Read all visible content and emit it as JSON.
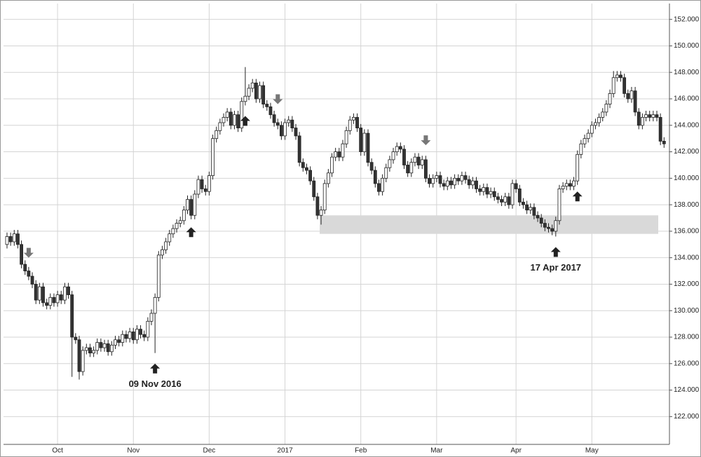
{
  "chart_data": {
    "type": "candlestick",
    "up_color": "#ffffff",
    "down_color": "#333333",
    "edge_color": "#222222",
    "grid": true,
    "ylim": [
      119.9,
      153.2
    ],
    "yticks": [
      {
        "value": 122,
        "label": "122.000"
      },
      {
        "value": 124,
        "label": "124.000"
      },
      {
        "value": 126,
        "label": "126.000"
      },
      {
        "value": 128,
        "label": "128.000"
      },
      {
        "value": 130,
        "label": "130.000"
      },
      {
        "value": 132,
        "label": "132.000"
      },
      {
        "value": 134,
        "label": "134.000"
      },
      {
        "value": 136,
        "label": "136.000"
      },
      {
        "value": 138,
        "label": "138.000"
      },
      {
        "value": 140,
        "label": "140.000"
      },
      {
        "value": 142,
        "label": "142.000"
      },
      {
        "value": 144,
        "label": "144.000"
      },
      {
        "value": 146,
        "label": "146.000"
      },
      {
        "value": 148,
        "label": "148.000"
      },
      {
        "value": 150,
        "label": "150.000"
      },
      {
        "value": 152,
        "label": "152.000"
      }
    ],
    "categories": [
      null,
      null,
      null,
      null,
      null,
      null,
      null,
      null,
      null,
      null,
      null,
      null,
      null,
      null,
      "Oct",
      null,
      null,
      null,
      null,
      null,
      null,
      null,
      null,
      null,
      null,
      null,
      null,
      null,
      null,
      null,
      null,
      null,
      null,
      null,
      null,
      "Nov",
      null,
      null,
      null,
      null,
      null,
      null,
      null,
      null,
      null,
      null,
      null,
      null,
      null,
      null,
      null,
      null,
      null,
      null,
      null,
      null,
      "Dec",
      null,
      null,
      null,
      null,
      null,
      null,
      null,
      null,
      null,
      null,
      null,
      null,
      null,
      null,
      null,
      null,
      null,
      null,
      null,
      null,
      "2017",
      null,
      null,
      null,
      null,
      null,
      null,
      null,
      null,
      null,
      null,
      null,
      null,
      null,
      null,
      null,
      null,
      null,
      null,
      null,
      null,
      "Feb",
      null,
      null,
      null,
      null,
      null,
      null,
      null,
      null,
      null,
      null,
      null,
      null,
      null,
      null,
      null,
      null,
      null,
      null,
      null,
      null,
      "Mar",
      null,
      null,
      null,
      null,
      null,
      null,
      null,
      null,
      null,
      null,
      null,
      null,
      null,
      null,
      null,
      null,
      null,
      null,
      null,
      null,
      null,
      "Apr",
      null,
      null,
      null,
      null,
      null,
      null,
      null,
      null,
      null,
      null,
      null,
      null,
      null,
      null,
      null,
      null,
      null,
      null,
      null,
      null,
      "May",
      null,
      null,
      null,
      null,
      null,
      null,
      null,
      null,
      null,
      null,
      null,
      null,
      null,
      null,
      null,
      null,
      null,
      null,
      null,
      null
    ],
    "open": [
      135.0,
      135.6,
      135.2,
      135.8,
      135.0,
      133.5,
      133.0,
      132.6,
      132.0,
      130.8,
      131.8,
      130.6,
      130.4,
      131.0,
      130.6,
      131.2,
      130.8,
      131.8,
      131.2,
      128.0,
      127.8,
      125.4,
      127.0,
      127.2,
      126.8,
      127.0,
      127.6,
      127.2,
      127.5,
      126.9,
      127.4,
      127.8,
      127.6,
      128.2,
      127.9,
      128.4,
      127.8,
      128.6,
      128.2,
      128.0,
      129.2,
      129.8,
      131.0,
      134.2,
      134.6,
      135.2,
      135.8,
      136.2,
      136.6,
      136.8,
      137.6,
      138.4,
      137.2,
      138.8,
      139.9,
      139.2,
      139.0,
      140.2,
      143.0,
      143.6,
      144.2,
      144.6,
      145.0,
      144.0,
      144.8,
      143.8,
      145.8,
      146.2,
      146.8,
      147.2,
      146.0,
      147.0,
      145.6,
      145.4,
      144.8,
      144.2,
      144.0,
      143.2,
      144.2,
      144.4,
      143.8,
      143.2,
      141.2,
      140.8,
      140.6,
      139.8,
      138.6,
      137.2,
      137.6,
      139.6,
      140.4,
      141.6,
      142.0,
      141.6,
      142.6,
      143.6,
      144.4,
      144.6,
      143.8,
      142.0,
      143.4,
      141.2,
      140.6,
      139.6,
      139.0,
      140.0,
      140.8,
      141.4,
      142.0,
      142.4,
      142.2,
      141.0,
      140.4,
      141.2,
      141.6,
      141.0,
      141.4,
      140.0,
      139.6,
      140.0,
      140.2,
      139.6,
      139.4,
      139.8,
      139.5,
      140.0,
      139.8,
      140.2,
      139.9,
      139.5,
      139.8,
      139.2,
      139.0,
      139.3,
      138.8,
      139.0,
      138.6,
      138.4,
      138.2,
      138.6,
      138.0,
      139.6,
      139.2,
      138.2,
      138.0,
      137.6,
      137.8,
      137.2,
      137.0,
      136.6,
      136.3,
      136.2,
      136.0,
      136.8,
      139.2,
      139.4,
      139.6,
      139.4,
      139.8,
      141.8,
      142.6,
      143.0,
      143.4,
      144.0,
      144.2,
      144.6,
      145.0,
      145.6,
      146.4,
      147.6,
      147.8,
      147.6,
      146.4,
      146.0,
      146.6,
      145.0,
      144.0,
      144.6,
      144.8,
      144.6,
      144.8,
      144.6,
      142.8
    ],
    "high": [
      135.9,
      135.9,
      136.1,
      136.1,
      135.3,
      133.8,
      133.3,
      132.9,
      132.3,
      132.1,
      132.1,
      130.9,
      131.3,
      131.3,
      131.5,
      131.5,
      132.1,
      132.1,
      131.5,
      128.3,
      128.1,
      127.3,
      127.5,
      127.5,
      127.3,
      127.9,
      127.9,
      127.8,
      127.8,
      127.7,
      128.1,
      128.1,
      128.5,
      128.5,
      128.7,
      128.7,
      128.9,
      128.9,
      128.5,
      129.5,
      130.1,
      131.3,
      134.5,
      134.9,
      135.5,
      136.1,
      136.5,
      136.9,
      137.1,
      137.9,
      138.7,
      138.7,
      139.1,
      140.2,
      140.2,
      139.5,
      140.5,
      143.3,
      143.9,
      144.5,
      144.9,
      145.3,
      145.3,
      145.1,
      145.1,
      146.1,
      148.4,
      147.1,
      147.5,
      147.5,
      147.3,
      147.3,
      145.9,
      145.7,
      145.1,
      144.5,
      144.3,
      144.5,
      144.7,
      144.7,
      144.1,
      143.5,
      141.5,
      141.1,
      140.9,
      140.1,
      138.9,
      137.9,
      139.9,
      140.7,
      141.9,
      142.3,
      142.3,
      142.9,
      143.9,
      144.7,
      144.9,
      144.9,
      144.1,
      143.7,
      143.7,
      141.5,
      140.9,
      139.9,
      140.3,
      141.1,
      141.7,
      142.3,
      142.7,
      142.7,
      142.5,
      141.3,
      141.5,
      141.9,
      141.9,
      141.7,
      141.7,
      140.3,
      140.3,
      140.5,
      140.5,
      139.9,
      140.1,
      140.1,
      140.3,
      140.3,
      140.5,
      140.5,
      140.2,
      140.1,
      140.1,
      139.5,
      139.6,
      139.6,
      139.3,
      139.3,
      138.9,
      138.7,
      138.9,
      138.9,
      139.9,
      139.9,
      139.5,
      138.5,
      138.3,
      138.1,
      138.1,
      137.5,
      137.3,
      136.9,
      136.6,
      136.5,
      137.1,
      139.5,
      139.7,
      139.9,
      139.9,
      140.1,
      142.1,
      142.9,
      143.3,
      143.7,
      144.3,
      144.5,
      144.9,
      145.3,
      145.9,
      146.7,
      148.1,
      148.1,
      148.1,
      147.9,
      146.7,
      146.9,
      146.9,
      145.3,
      144.9,
      145.1,
      145.1,
      145.1,
      145.1,
      144.9,
      143.1
    ],
    "low": [
      134.7,
      134.9,
      134.9,
      134.7,
      133.2,
      132.7,
      132.3,
      131.7,
      130.5,
      130.5,
      130.3,
      130.1,
      130.1,
      130.3,
      130.3,
      130.5,
      130.5,
      130.9,
      125.0,
      127.5,
      124.8,
      125.1,
      126.7,
      126.5,
      126.5,
      126.7,
      126.9,
      126.9,
      126.6,
      126.6,
      127.1,
      127.3,
      127.3,
      127.6,
      127.6,
      127.5,
      127.5,
      127.9,
      127.7,
      127.7,
      128.9,
      126.8,
      130.7,
      133.9,
      134.3,
      134.9,
      135.5,
      135.9,
      136.3,
      136.5,
      137.3,
      136.9,
      136.9,
      138.5,
      138.9,
      138.7,
      138.7,
      139.9,
      142.7,
      143.3,
      143.9,
      144.3,
      143.7,
      143.7,
      143.5,
      143.5,
      145.5,
      145.9,
      146.5,
      145.7,
      145.7,
      145.3,
      145.1,
      144.5,
      143.9,
      143.7,
      142.9,
      142.9,
      143.9,
      143.5,
      142.9,
      140.9,
      140.5,
      140.3,
      139.5,
      138.3,
      136.9,
      136.5,
      137.3,
      139.3,
      140.1,
      141.3,
      141.3,
      141.3,
      142.3,
      143.3,
      144.1,
      143.5,
      141.7,
      141.7,
      140.9,
      140.3,
      139.3,
      138.7,
      138.7,
      139.7,
      140.5,
      141.1,
      141.7,
      141.9,
      140.7,
      140.1,
      140.1,
      140.9,
      140.7,
      140.7,
      139.7,
      139.3,
      139.3,
      139.7,
      139.3,
      139.1,
      139.1,
      139.2,
      139.2,
      139.5,
      139.5,
      139.6,
      139.2,
      139.2,
      138.9,
      138.7,
      138.7,
      138.5,
      138.5,
      138.3,
      138.1,
      137.9,
      137.9,
      137.7,
      137.7,
      138.9,
      137.9,
      137.7,
      137.3,
      137.3,
      136.9,
      136.7,
      136.3,
      136.0,
      135.9,
      135.7,
      135.6,
      136.5,
      138.9,
      139.1,
      139.1,
      139.1,
      139.5,
      141.5,
      142.3,
      142.7,
      143.1,
      143.7,
      143.9,
      144.3,
      144.7,
      145.3,
      146.1,
      147.3,
      147.3,
      146.1,
      145.7,
      145.7,
      144.7,
      143.7,
      143.7,
      144.3,
      144.3,
      144.3,
      144.3,
      142.5,
      142.3
    ],
    "close": [
      135.6,
      135.2,
      135.8,
      135.0,
      133.5,
      133.0,
      132.6,
      132.0,
      130.8,
      131.8,
      130.6,
      130.4,
      131.0,
      130.6,
      131.2,
      130.8,
      131.8,
      131.2,
      128.0,
      127.8,
      125.4,
      127.0,
      127.2,
      126.8,
      127.0,
      127.6,
      127.2,
      127.5,
      126.9,
      127.4,
      127.8,
      127.6,
      128.2,
      127.9,
      128.4,
      127.8,
      128.6,
      128.2,
      128.0,
      129.2,
      129.8,
      131.0,
      134.2,
      134.6,
      135.2,
      135.8,
      136.2,
      136.6,
      136.8,
      137.6,
      138.4,
      137.2,
      138.8,
      139.9,
      139.2,
      139.0,
      140.2,
      143.0,
      143.6,
      144.2,
      144.6,
      145.0,
      144.0,
      144.8,
      143.8,
      145.8,
      146.2,
      146.8,
      147.2,
      146.0,
      147.0,
      145.6,
      145.4,
      144.8,
      144.2,
      144.0,
      143.2,
      144.2,
      144.4,
      143.8,
      143.2,
      141.2,
      140.8,
      140.6,
      139.8,
      138.6,
      137.2,
      137.6,
      139.6,
      140.4,
      141.6,
      142.0,
      141.6,
      142.6,
      143.6,
      144.4,
      144.6,
      143.8,
      142.0,
      143.4,
      141.2,
      140.6,
      139.6,
      139.0,
      140.0,
      140.8,
      141.4,
      142.0,
      142.4,
      142.2,
      141.0,
      140.4,
      141.2,
      141.6,
      141.0,
      141.4,
      140.0,
      139.6,
      140.0,
      140.2,
      139.6,
      139.4,
      139.8,
      139.5,
      140.0,
      139.8,
      140.2,
      139.9,
      139.5,
      139.8,
      139.2,
      139.0,
      139.3,
      138.8,
      139.0,
      138.6,
      138.4,
      138.2,
      138.6,
      138.0,
      139.6,
      139.2,
      138.2,
      138.0,
      137.6,
      137.8,
      137.2,
      137.0,
      136.6,
      136.3,
      136.2,
      136.0,
      136.8,
      139.2,
      139.4,
      139.6,
      139.4,
      139.8,
      141.8,
      142.6,
      143.0,
      143.4,
      144.0,
      144.2,
      144.6,
      145.0,
      145.6,
      146.4,
      147.6,
      147.8,
      147.6,
      146.4,
      146.0,
      146.6,
      145.0,
      144.0,
      144.6,
      144.8,
      144.6,
      144.8,
      144.6,
      142.8,
      142.6
    ],
    "zone": {
      "low": 135.8,
      "high": 137.2,
      "start": 87,
      "end": 180,
      "color": "#d9d9d9"
    },
    "signals": [
      {
        "index": 6,
        "direction": "down",
        "value": 134.0,
        "color": "#777777"
      },
      {
        "index": 41,
        "direction": "up",
        "value": 126.0,
        "color": "#222222",
        "label": "09 Nov 2016"
      },
      {
        "index": 51,
        "direction": "up",
        "value": 136.3,
        "color": "#222222"
      },
      {
        "index": 66,
        "direction": "up",
        "value": 144.7,
        "color": "#222222"
      },
      {
        "index": 75,
        "direction": "down",
        "value": 145.6,
        "color": "#777777"
      },
      {
        "index": 116,
        "direction": "down",
        "value": 142.5,
        "color": "#777777"
      },
      {
        "index": 152,
        "direction": "up",
        "value": 134.8,
        "color": "#222222",
        "label": "17 Apr 2017"
      },
      {
        "index": 158,
        "direction": "up",
        "value": 139.0,
        "color": "#222222"
      }
    ]
  }
}
